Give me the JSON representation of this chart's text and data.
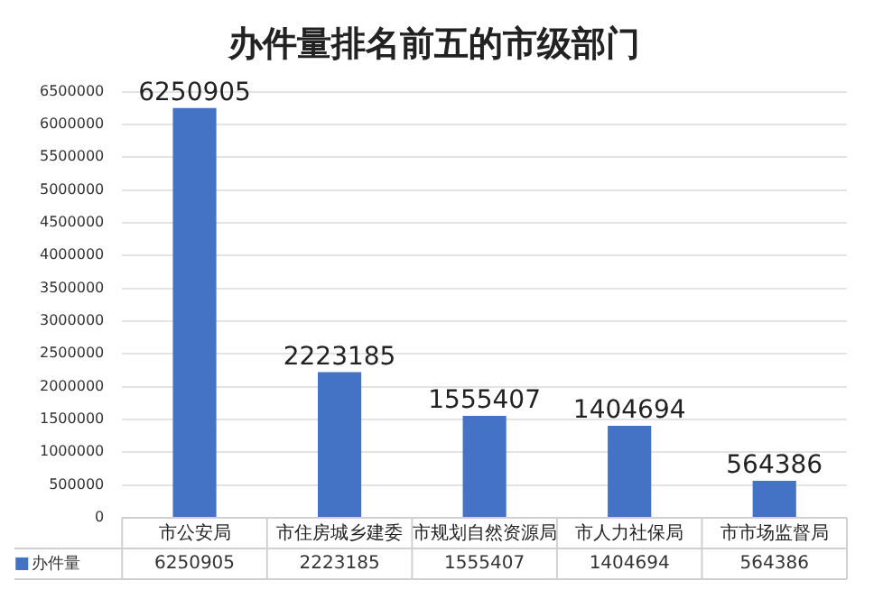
{
  "chart_data": {
    "type": "bar",
    "title": "办件量排名前五的市级部门",
    "categories": [
      "市公安局",
      "市住房城乡建委",
      "市规划自然资源局",
      "市人力社保局",
      "市市场监督局"
    ],
    "series": [
      {
        "name": "办件量",
        "color": "#4472c4",
        "values": [
          6250905,
          2223185,
          1555407,
          1404694,
          564386
        ],
        "value_labels": [
          "6250905",
          "2223185",
          "1555407",
          "1404694",
          "564386"
        ]
      }
    ],
    "ylim": [
      0,
      6500000
    ],
    "yticks": [
      0,
      500000,
      1000000,
      1500000,
      2000000,
      2500000,
      3000000,
      3500000,
      4000000,
      4500000,
      5000000,
      5500000,
      6000000,
      6500000
    ],
    "annotations": [
      "6250905",
      "2223185",
      "1555407",
      "1404694",
      "564386"
    ],
    "grid": "y",
    "legend": "bottom"
  }
}
